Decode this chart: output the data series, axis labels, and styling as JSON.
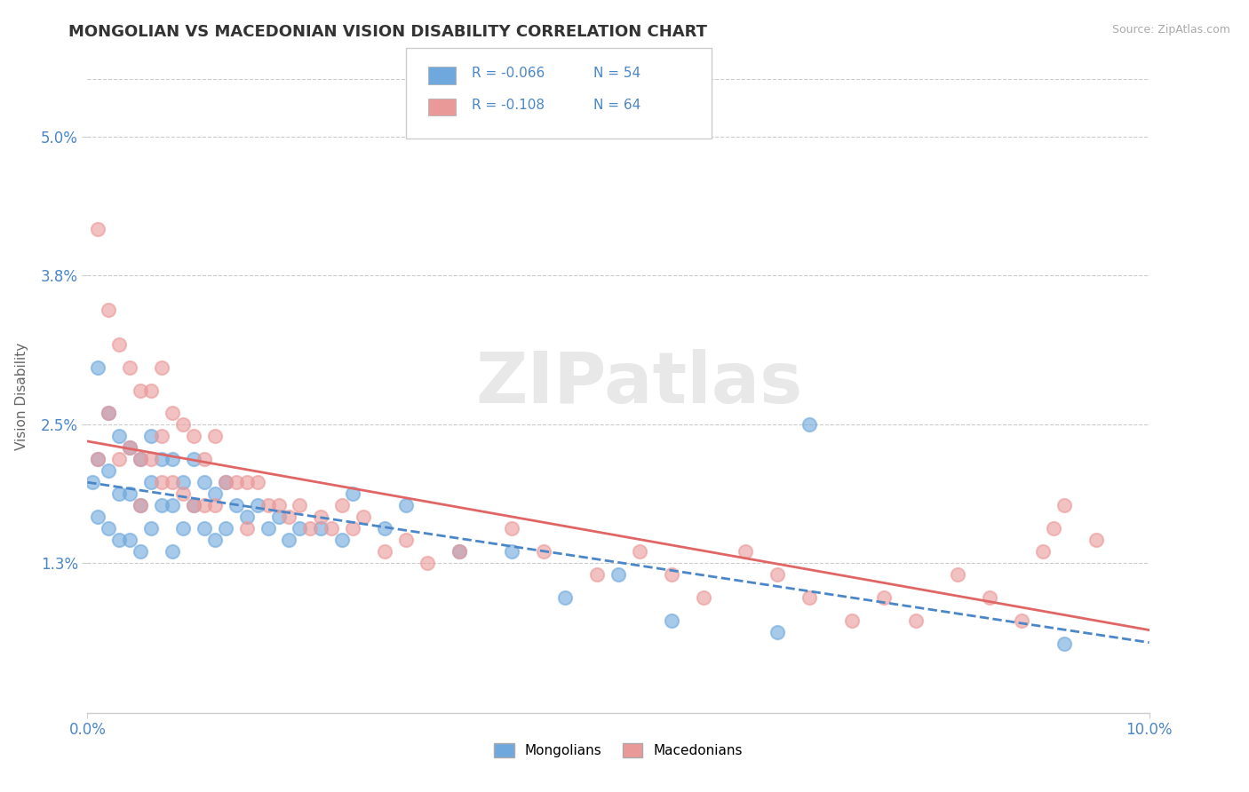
{
  "title": "MONGOLIAN VS MACEDONIAN VISION DISABILITY CORRELATION CHART",
  "source": "Source: ZipAtlas.com",
  "ylabel": "Vision Disability",
  "xlim": [
    0.0,
    0.1
  ],
  "ylim": [
    0.0,
    0.055
  ],
  "xticks": [
    0.0,
    0.1
  ],
  "xticklabels": [
    "0.0%",
    "10.0%"
  ],
  "yticks": [
    0.013,
    0.025,
    0.038,
    0.05
  ],
  "yticklabels": [
    "1.3%",
    "2.5%",
    "3.8%",
    "5.0%"
  ],
  "mongolian_color": "#6fa8dc",
  "macedonian_color": "#ea9999",
  "mongolian_line_color": "#4a86c8",
  "macedonian_line_color": "#e06666",
  "legend_R_mongolian": "R = -0.066",
  "legend_N_mongolian": "N = 54",
  "legend_R_macedonian": "R = -0.108",
  "legend_N_macedonian": "N = 64",
  "legend_label_mongolian": "Mongolians",
  "legend_label_macedonian": "Macedonians",
  "background_color": "#ffffff",
  "grid_color": "#cccccc",
  "title_color": "#333333",
  "axis_tick_color": "#4a86c8",
  "watermark": "ZIPatlas",
  "mongolian_x": [
    0.0005,
    0.001,
    0.001,
    0.001,
    0.002,
    0.002,
    0.002,
    0.003,
    0.003,
    0.003,
    0.004,
    0.004,
    0.004,
    0.005,
    0.005,
    0.005,
    0.006,
    0.006,
    0.006,
    0.007,
    0.007,
    0.008,
    0.008,
    0.008,
    0.009,
    0.009,
    0.01,
    0.01,
    0.011,
    0.011,
    0.012,
    0.012,
    0.013,
    0.013,
    0.014,
    0.015,
    0.016,
    0.017,
    0.018,
    0.019,
    0.02,
    0.022,
    0.024,
    0.025,
    0.028,
    0.03,
    0.035,
    0.04,
    0.045,
    0.05,
    0.055,
    0.065,
    0.068,
    0.092
  ],
  "mongolian_y": [
    0.02,
    0.03,
    0.022,
    0.017,
    0.026,
    0.021,
    0.016,
    0.024,
    0.019,
    0.015,
    0.023,
    0.019,
    0.015,
    0.022,
    0.018,
    0.014,
    0.024,
    0.02,
    0.016,
    0.022,
    0.018,
    0.022,
    0.018,
    0.014,
    0.02,
    0.016,
    0.022,
    0.018,
    0.02,
    0.016,
    0.019,
    0.015,
    0.02,
    0.016,
    0.018,
    0.017,
    0.018,
    0.016,
    0.017,
    0.015,
    0.016,
    0.016,
    0.015,
    0.019,
    0.016,
    0.018,
    0.014,
    0.014,
    0.01,
    0.012,
    0.008,
    0.007,
    0.025,
    0.006
  ],
  "macedonian_x": [
    0.001,
    0.001,
    0.002,
    0.002,
    0.003,
    0.003,
    0.004,
    0.004,
    0.005,
    0.005,
    0.005,
    0.006,
    0.006,
    0.007,
    0.007,
    0.007,
    0.008,
    0.008,
    0.009,
    0.009,
    0.01,
    0.01,
    0.011,
    0.011,
    0.012,
    0.012,
    0.013,
    0.014,
    0.015,
    0.015,
    0.016,
    0.017,
    0.018,
    0.019,
    0.02,
    0.021,
    0.022,
    0.023,
    0.024,
    0.025,
    0.026,
    0.028,
    0.03,
    0.032,
    0.035,
    0.04,
    0.043,
    0.048,
    0.052,
    0.055,
    0.058,
    0.062,
    0.065,
    0.068,
    0.072,
    0.075,
    0.078,
    0.082,
    0.085,
    0.088,
    0.09,
    0.091,
    0.092,
    0.095
  ],
  "macedonian_y": [
    0.042,
    0.022,
    0.035,
    0.026,
    0.032,
    0.022,
    0.03,
    0.023,
    0.028,
    0.022,
    0.018,
    0.028,
    0.022,
    0.03,
    0.024,
    0.02,
    0.026,
    0.02,
    0.025,
    0.019,
    0.024,
    0.018,
    0.022,
    0.018,
    0.024,
    0.018,
    0.02,
    0.02,
    0.02,
    0.016,
    0.02,
    0.018,
    0.018,
    0.017,
    0.018,
    0.016,
    0.017,
    0.016,
    0.018,
    0.016,
    0.017,
    0.014,
    0.015,
    0.013,
    0.014,
    0.016,
    0.014,
    0.012,
    0.014,
    0.012,
    0.01,
    0.014,
    0.012,
    0.01,
    0.008,
    0.01,
    0.008,
    0.012,
    0.01,
    0.008,
    0.014,
    0.016,
    0.018,
    0.015
  ]
}
